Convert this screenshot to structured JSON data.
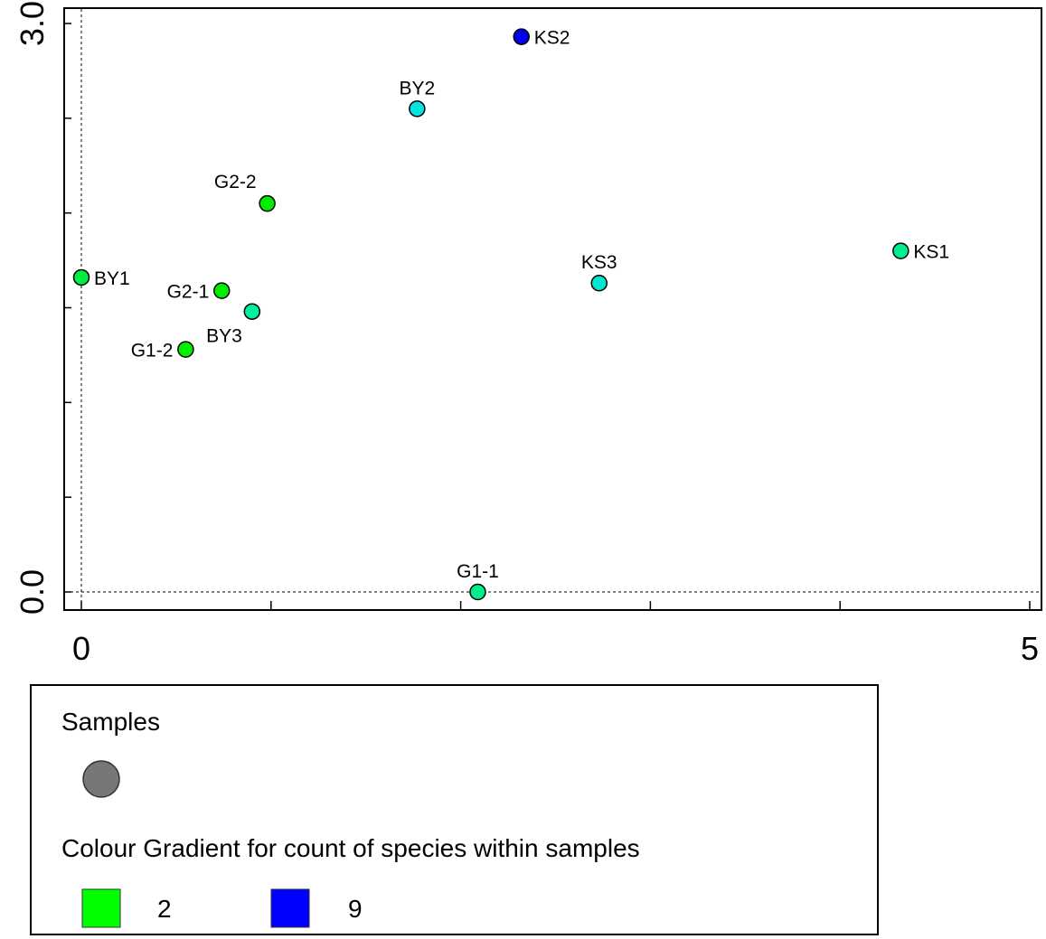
{
  "chart_data": {
    "type": "scatter",
    "title": "",
    "xlabel": "",
    "ylabel": "",
    "xlim": [
      0,
      5
    ],
    "ylim": [
      0,
      3.0
    ],
    "x_tick_labels": [
      "0",
      "5"
    ],
    "y_tick_labels": [
      "0.0",
      "3.0"
    ],
    "reference_lines": [
      {
        "axis": "x",
        "value": 0,
        "style": "dashed"
      },
      {
        "axis": "y",
        "value": 0,
        "style": "dashed"
      }
    ],
    "grid": false,
    "points": [
      {
        "label": "KS2",
        "x": 2.32,
        "y": 2.93,
        "species_count": 9,
        "color": "#0000ee",
        "label_pos": "right"
      },
      {
        "label": "BY2",
        "x": 1.77,
        "y": 2.55,
        "species_count": 4,
        "color": "#00e5e0",
        "label_pos": "above"
      },
      {
        "label": "G2-2",
        "x": 0.98,
        "y": 2.05,
        "species_count": 2,
        "color": "#00ee00",
        "label_pos": "above-left"
      },
      {
        "label": "KS1",
        "x": 4.32,
        "y": 1.8,
        "species_count": 3,
        "color": "#00ee90",
        "label_pos": "right"
      },
      {
        "label": "KS3",
        "x": 2.73,
        "y": 1.63,
        "species_count": 4,
        "color": "#00e6d0",
        "label_pos": "above"
      },
      {
        "label": "BY1",
        "x": 0.0,
        "y": 1.66,
        "species_count": 2,
        "color": "#00ee44",
        "label_pos": "right"
      },
      {
        "label": "G2-1",
        "x": 0.74,
        "y": 1.59,
        "species_count": 2,
        "color": "#00ee00",
        "label_pos": "left"
      },
      {
        "label": "BY3",
        "x": 0.9,
        "y": 1.48,
        "species_count": 3,
        "color": "#00eea0",
        "label_pos": "below-left"
      },
      {
        "label": "G1-2",
        "x": 0.55,
        "y": 1.28,
        "species_count": 2,
        "color": "#00ee00",
        "label_pos": "left"
      },
      {
        "label": "G1-1",
        "x": 2.09,
        "y": 0.0,
        "species_count": 3,
        "color": "#00ee90",
        "label_pos": "above"
      }
    ]
  },
  "legend": {
    "samples_title": "Samples",
    "sample_symbol_color": "#777777",
    "gradient_title": "Colour Gradient for count of species within samples",
    "gradient_low_label": "2",
    "gradient_low_color": "#00ff00",
    "gradient_high_label": "9",
    "gradient_high_color": "#0000ff"
  }
}
